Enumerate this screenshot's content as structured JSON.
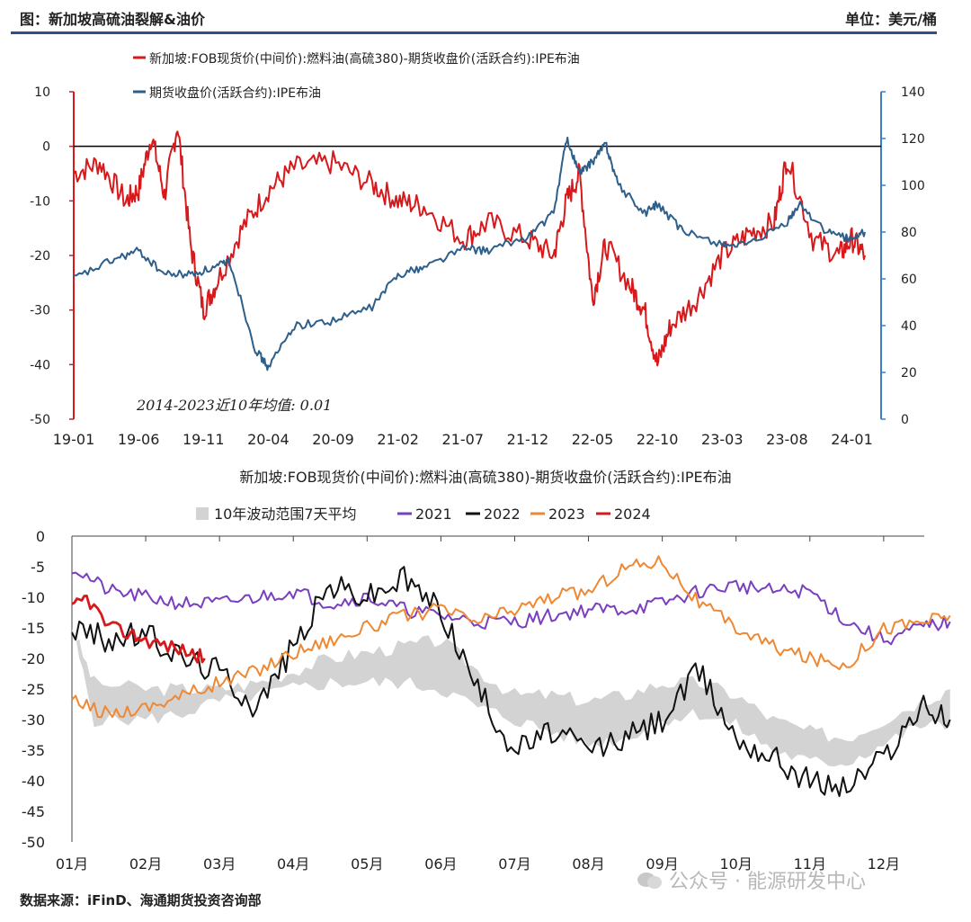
{
  "header": {
    "title": "图：新加坡高硫油裂解&油价",
    "unit": "单位：美元/桶"
  },
  "footer": {
    "source": "数据来源：iFinD、海通期货投资咨询部"
  },
  "watermark": {
    "text": "公众号 · 能源研发中心"
  },
  "colors": {
    "red": "#d7191c",
    "blue": "#2e5f8a",
    "purple": "#7a3fbf",
    "black": "#111111",
    "orange": "#ee8833",
    "band": "#d3d3d3"
  },
  "chart_data": [
    {
      "type": "line",
      "legend": [
        "新加坡:FOB现货价(中间价):燃料油(高硫380)-期货收盘价(活跃合约):IPE布油",
        "期货收盘价(活跃合约):IPE布油"
      ],
      "annotation": "2014-2023近10年均值: 0.01",
      "categories": [
        "19-01",
        "19-06",
        "19-11",
        "20-04",
        "20-09",
        "21-02",
        "21-07",
        "21-12",
        "22-05",
        "22-10",
        "23-03",
        "23-08",
        "24-01"
      ],
      "ylim_left": [
        -50,
        10
      ],
      "yticks_left": [
        10,
        0,
        -10,
        -20,
        -30,
        -40,
        -50
      ],
      "ylim_right": [
        0,
        140
      ],
      "yticks_right": [
        140,
        120,
        100,
        80,
        60,
        40,
        20,
        0
      ],
      "series": [
        {
          "name": "新加坡:FOB现货价(中间价):燃料油(高硫380)-期货收盘价(活跃合约):IPE布油",
          "axis": "left",
          "x": [
            "19-01",
            "19-03",
            "19-05",
            "19-06",
            "19-07",
            "19-08",
            "19-09",
            "19-10",
            "19-11",
            "19-12",
            "20-02",
            "20-04",
            "20-06",
            "20-09",
            "20-12",
            "21-02",
            "21-04",
            "21-07",
            "21-09",
            "21-12",
            "22-02",
            "22-03",
            "22-04",
            "22-05",
            "22-06",
            "22-08",
            "22-09",
            "22-10",
            "22-11",
            "23-01",
            "23-03",
            "23-05",
            "23-07",
            "23-08",
            "23-10",
            "23-12",
            "24-01",
            "24-02"
          ],
          "values": [
            -5,
            -3,
            -10,
            -8,
            2,
            -9,
            4,
            -18,
            -30,
            -25,
            -15,
            -8,
            -4,
            -3,
            -7,
            -10,
            -11,
            -17,
            -14,
            -17,
            -20,
            -10,
            -5,
            -28,
            -18,
            -26,
            -30,
            -40,
            -33,
            -28,
            -20,
            -16,
            -14,
            -2,
            -17,
            -20,
            -17,
            -20
          ]
        },
        {
          "name": "期货收盘价(活跃合约):IPE布油",
          "axis": "right",
          "x": [
            "19-01",
            "19-04",
            "19-06",
            "19-08",
            "19-10",
            "19-12",
            "20-01",
            "20-03",
            "20-04",
            "20-06",
            "20-09",
            "20-12",
            "21-02",
            "21-04",
            "21-07",
            "21-09",
            "21-12",
            "22-02",
            "22-03",
            "22-04",
            "22-05",
            "22-06",
            "22-07",
            "22-09",
            "22-10",
            "22-12",
            "23-03",
            "23-05",
            "23-08",
            "23-09",
            "23-11",
            "24-01",
            "24-02"
          ],
          "values": [
            60,
            68,
            72,
            62,
            62,
            65,
            68,
            30,
            22,
            40,
            42,
            48,
            62,
            65,
            73,
            72,
            78,
            88,
            120,
            105,
            110,
            118,
            100,
            88,
            92,
            80,
            75,
            74,
            84,
            92,
            80,
            77,
            80
          ]
        }
      ]
    },
    {
      "type": "line",
      "title": "新加坡:FOB现货价(中间价):燃料油(高硫380)-期货收盘价(活跃合约):IPE布油",
      "categories": [
        "01月",
        "02月",
        "03月",
        "04月",
        "05月",
        "06月",
        "07月",
        "08月",
        "09月",
        "10月",
        "11月",
        "12月"
      ],
      "ylim": [
        -50,
        0
      ],
      "yticks": [
        0,
        -5,
        -10,
        -15,
        -20,
        -25,
        -30,
        -35,
        -40,
        -45,
        -50
      ],
      "legend": [
        "10年波动范围7天平均",
        "2021",
        "2022",
        "2023",
        "2024"
      ],
      "series": [
        {
          "name": "10年波动范围7天平均",
          "type": "area",
          "x": [
            0,
            0.3,
            1,
            1.5,
            2,
            2.5,
            3,
            3.5,
            4,
            4.5,
            5,
            5.5,
            6,
            6.5,
            7,
            7.5,
            8,
            8.5,
            9,
            9.5,
            10,
            10.5,
            11,
            11.5,
            11.9
          ],
          "upper": [
            -15,
            -24,
            -25,
            -25,
            -25,
            -24,
            -22,
            -20,
            -19,
            -18,
            -17,
            -22,
            -26,
            -26,
            -27,
            -26,
            -24,
            -24,
            -26,
            -30,
            -32,
            -33,
            -30,
            -27,
            -25
          ],
          "lower": [
            -15,
            -30,
            -30,
            -29,
            -27,
            -26,
            -25,
            -24,
            -24,
            -24,
            -25,
            -28,
            -30,
            -32,
            -34,
            -33,
            -30,
            -29,
            -31,
            -35,
            -37,
            -37,
            -34,
            -31,
            -31
          ]
        },
        {
          "name": "2021",
          "x": [
            0,
            0.5,
            1,
            1.5,
            2,
            2.5,
            3,
            3.5,
            4,
            4.5,
            5,
            5.5,
            6,
            6.5,
            7,
            7.5,
            8,
            8.5,
            9,
            9.5,
            10,
            10.5,
            11,
            11.5,
            11.9
          ],
          "values": [
            -5,
            -9,
            -10,
            -11,
            -11,
            -10,
            -9,
            -11,
            -10,
            -12,
            -13,
            -14,
            -14,
            -13,
            -12,
            -12,
            -11,
            -9,
            -8,
            -9,
            -9,
            -14,
            -17,
            -15,
            -14
          ]
        },
        {
          "name": "2022",
          "x": [
            0,
            0.5,
            1,
            1.5,
            2,
            2.5,
            3,
            3.5,
            4,
            4.5,
            5,
            5.5,
            6,
            6.5,
            7,
            7.5,
            8,
            8.5,
            9,
            9.5,
            10,
            10.5,
            11,
            11.5,
            11.9
          ],
          "values": [
            -15,
            -17,
            -16,
            -20,
            -22,
            -28,
            -18,
            -8,
            -10,
            -7,
            -12,
            -25,
            -35,
            -32,
            -35,
            -33,
            -30,
            -22,
            -33,
            -36,
            -40,
            -41,
            -36,
            -28,
            -30
          ]
        },
        {
          "name": "2023",
          "x": [
            0,
            0.5,
            1,
            1.5,
            2,
            2.5,
            3,
            3.5,
            4,
            4.5,
            5,
            5.5,
            6,
            6.5,
            7,
            7.5,
            8,
            8.5,
            9,
            9.5,
            10,
            10.5,
            11,
            11.5,
            11.9
          ],
          "values": [
            -27,
            -29,
            -28,
            -26,
            -24,
            -22,
            -19,
            -17,
            -15,
            -13,
            -12,
            -14,
            -12,
            -10,
            -9,
            -5,
            -4,
            -11,
            -15,
            -18,
            -20,
            -21,
            -15,
            -14,
            -13
          ]
        },
        {
          "name": "2024",
          "x": [
            0,
            0.2,
            0.5,
            0.8,
            1.0,
            1.3,
            1.6,
            1.8
          ],
          "values": [
            -12,
            -10,
            -15,
            -16,
            -17,
            -18,
            -19,
            -20
          ]
        }
      ]
    }
  ]
}
